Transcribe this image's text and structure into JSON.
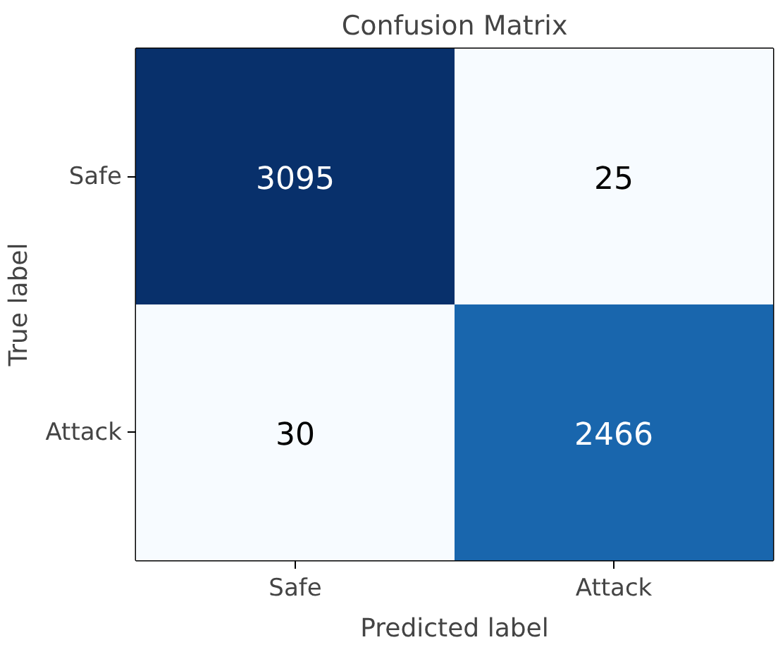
{
  "chart_data": {
    "type": "heatmap",
    "title": "Confusion Matrix",
    "xlabel": "Predicted label",
    "ylabel": "True label",
    "categories": [
      "Safe",
      "Attack"
    ],
    "y_categories": [
      "Safe",
      "Attack"
    ],
    "data_labels": true,
    "cells": [
      [
        3095,
        25
      ],
      [
        30,
        2466
      ]
    ]
  }
}
